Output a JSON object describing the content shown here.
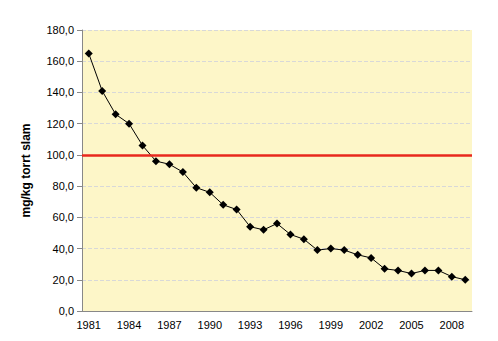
{
  "chart_data": {
    "type": "line",
    "y_label": "mg/kg torrt slam",
    "categories": [
      "1981",
      null,
      null,
      "1984",
      null,
      null,
      "1987",
      null,
      null,
      "1990",
      null,
      null,
      "1993",
      null,
      null,
      "1996",
      null,
      null,
      "1999",
      null,
      null,
      "2002",
      null,
      null,
      "2005",
      null,
      null,
      "2008",
      null
    ],
    "values": [
      165,
      141,
      126,
      120,
      106,
      96,
      94,
      89,
      79,
      76,
      68,
      65,
      54,
      52,
      56,
      49,
      46,
      39,
      40,
      39,
      36,
      34,
      27,
      26,
      24,
      26,
      26,
      22,
      20
    ],
    "color": "#000000",
    "marker": "diamond",
    "reference_line": {
      "value": 100,
      "color": "#e8281e"
    },
    "ylim": [
      0,
      180
    ],
    "yticks": [
      {
        "value": 0,
        "label": "0,0"
      },
      {
        "value": 20,
        "label": "20,0"
      },
      {
        "value": 40,
        "label": "40,0"
      },
      {
        "value": 60,
        "label": "60,0"
      },
      {
        "value": 80,
        "label": "80,0"
      },
      {
        "value": 100,
        "label": "100,0"
      },
      {
        "value": 120,
        "label": "120,0"
      },
      {
        "value": 140,
        "label": "140,0"
      },
      {
        "value": 160,
        "label": "160,0"
      },
      {
        "value": 180,
        "label": "180,0"
      }
    ],
    "grid": true
  }
}
